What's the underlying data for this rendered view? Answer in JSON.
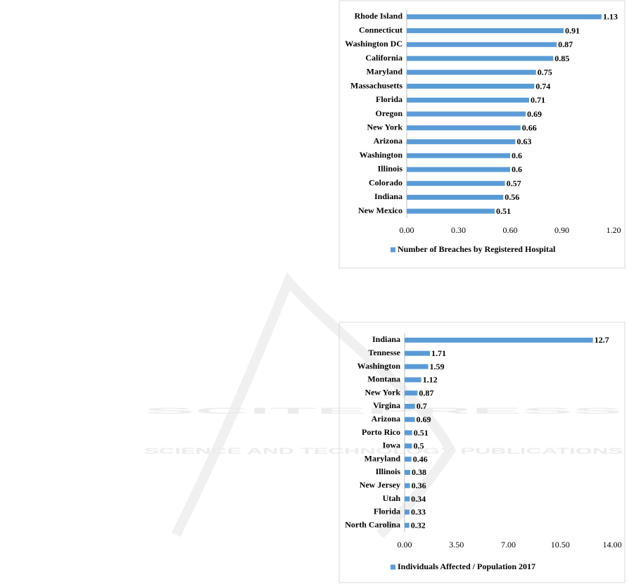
{
  "watermark": {
    "title": "SCITEPRESS",
    "subtitle": "SCIENCE AND TECHNOLOGY PUBLICATIONS"
  },
  "chart_data": [
    {
      "type": "bar",
      "orientation": "horizontal",
      "categories": [
        "Rhode Island",
        "Connecticut",
        "Washington DC",
        "California",
        "Maryland",
        "Massachusetts",
        "Florida",
        "Oregon",
        "New York",
        "Arizona",
        "Washington",
        "Illinois",
        "Colorado",
        "Indiana",
        "New Mexico"
      ],
      "series": [
        {
          "name": "Number of Breaches by Registered Hospital",
          "color": "#5b9bd5",
          "values": [
            1.13,
            0.91,
            0.87,
            0.85,
            0.75,
            0.74,
            0.71,
            0.69,
            0.66,
            0.63,
            0.6,
            0.6,
            0.57,
            0.56,
            0.51
          ]
        }
      ],
      "xlim": [
        0,
        1.2
      ],
      "xticks": [
        {
          "value": 0,
          "label": "0.00"
        },
        {
          "value": 0.3,
          "label": "0.30"
        },
        {
          "value": 0.6,
          "label": "0.60"
        },
        {
          "value": 0.9,
          "label": "0.90"
        },
        {
          "value": 1.2,
          "label": "1.20"
        }
      ],
      "legend": "bottom"
    },
    {
      "type": "bar",
      "orientation": "horizontal",
      "categories": [
        "Indiana",
        "Tennesse",
        "Washington",
        "Montana",
        "New York",
        "Virgina",
        "Arizona",
        "Porto Rico",
        "Iowa",
        "Maryland",
        "Illinois",
        "New Jersey",
        "Utah",
        "Florida",
        "North Carolina"
      ],
      "series": [
        {
          "name": "Individuals Affected / Population 2017",
          "color": "#5b9bd5",
          "values": [
            12.7,
            1.71,
            1.59,
            1.12,
            0.87,
            0.7,
            0.69,
            0.51,
            0.5,
            0.46,
            0.38,
            0.36,
            0.34,
            0.33,
            0.32
          ]
        }
      ],
      "xlim": [
        0,
        14
      ],
      "xticks": [
        {
          "value": 0,
          "label": "0.00"
        },
        {
          "value": 3.5,
          "label": "3.50"
        },
        {
          "value": 7,
          "label": "7.00"
        },
        {
          "value": 10.5,
          "label": "10.50"
        },
        {
          "value": 14,
          "label": "14.00"
        }
      ],
      "legend": "bottom"
    }
  ]
}
